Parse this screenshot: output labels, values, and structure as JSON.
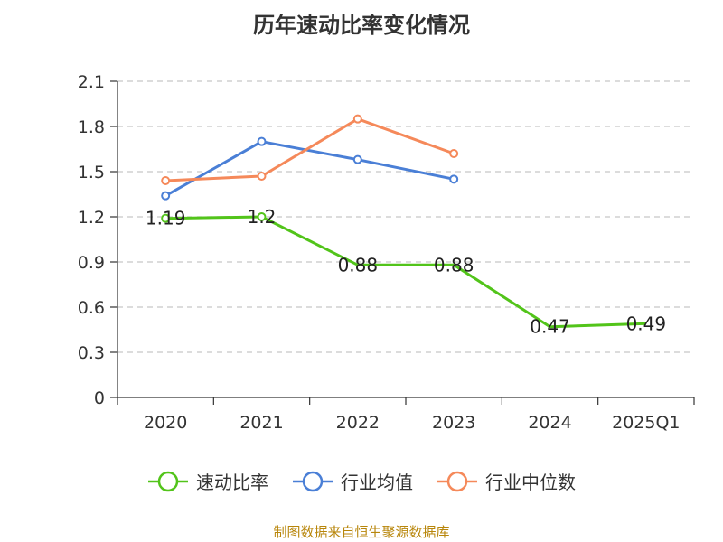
{
  "chart_data": {
    "type": "line",
    "title": "历年速动比率变化情况",
    "categories": [
      "2020",
      "2021",
      "2022",
      "2023",
      "2024",
      "2025Q1"
    ],
    "y_ticks": [
      "0",
      "0.3",
      "0.6",
      "0.9",
      "1.2",
      "1.5",
      "1.8",
      "2.1"
    ],
    "ylim": [
      0,
      2.1
    ],
    "grid": true,
    "legend_position": "bottom",
    "series": [
      {
        "name": "速动比率",
        "color": "#52c41a",
        "values": [
          1.19,
          1.2,
          0.88,
          0.88,
          0.47,
          0.49
        ],
        "labels": [
          "1.19",
          "1.2",
          "0.88",
          "0.88",
          "0.47",
          "0.49"
        ],
        "markers": [
          true,
          true,
          false,
          false,
          false,
          false
        ]
      },
      {
        "name": "行业均值",
        "color": "#4a7fd6",
        "values": [
          1.34,
          1.7,
          1.58,
          1.45,
          null,
          null
        ]
      },
      {
        "name": "行业中位数",
        "color": "#f5895a",
        "values": [
          1.44,
          1.47,
          1.85,
          1.62,
          null,
          null
        ]
      }
    ]
  },
  "source_note": "制图数据来自恒生聚源数据库"
}
